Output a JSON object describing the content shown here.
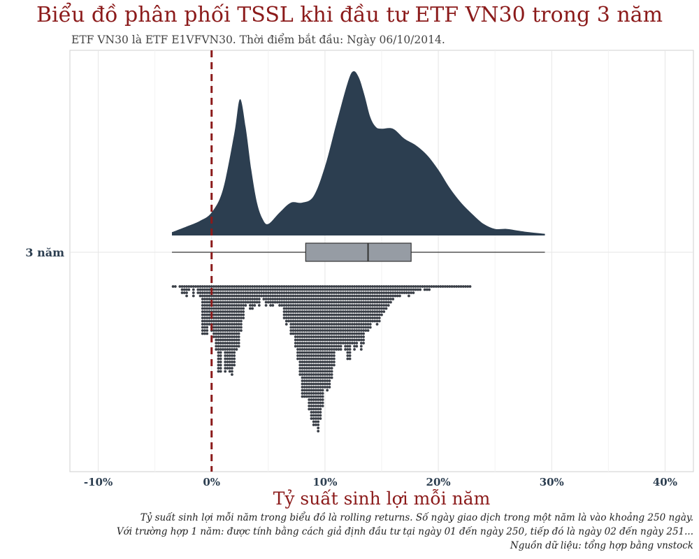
{
  "title": "Biểu đồ phân phối TSSL khi đầu tư ETF VN30 trong 3 năm",
  "subtitle": "ETF VN30 là ETF E1VFVN30.  Thời điểm bắt đầu: Ngày 06/10/2014.",
  "captions": [
    "Tỷ suất sinh lợi mỗi năm trong biểu đồ là rolling returns. Số ngày giao dịch trong một năm là vào khoảng 250 ngày.",
    "Với trường hợp 1 năm: được tính bằng cách giả định đầu tư tại ngày 01 đến ngày 250, tiếp đó là ngày 02 đến ngày 251...",
    "Nguồn dữ liệu: tổng hợp bằng vnstock"
  ],
  "colors": {
    "title": "#8b1a1a",
    "density_fill": "#2c3e50",
    "box_fill": "#969ca4",
    "dots": "#3a3f47",
    "reference_line": "#8b1a1a",
    "axis_text": "#2c3e50"
  },
  "chart_data": {
    "type": "raincloud",
    "category": "3 năm",
    "xlabel": "Tỷ suất sinh lợi mỗi năm",
    "ylabel": "",
    "xlim": [
      -0.125,
      0.425
    ],
    "x_ticks": [
      {
        "value": -0.1,
        "label": "-10%"
      },
      {
        "value": 0.0,
        "label": "0%"
      },
      {
        "value": 0.1,
        "label": "10%"
      },
      {
        "value": 0.2,
        "label": "20%"
      },
      {
        "value": 0.3,
        "label": "30%"
      },
      {
        "value": 0.4,
        "label": "40%"
      }
    ],
    "reference_line": {
      "value": 0.0,
      "style": "dashed"
    },
    "grid": true,
    "box": {
      "min": -0.035,
      "q1": 0.083,
      "median": 0.138,
      "q3": 0.176,
      "max": 0.294
    },
    "density": {
      "x": [
        -0.035,
        -0.02,
        -0.01,
        0.0,
        0.01,
        0.02,
        0.025,
        0.03,
        0.035,
        0.04,
        0.045,
        0.05,
        0.06,
        0.07,
        0.08,
        0.09,
        0.1,
        0.11,
        0.12,
        0.125,
        0.13,
        0.135,
        0.14,
        0.145,
        0.15,
        0.16,
        0.17,
        0.18,
        0.19,
        0.2,
        0.21,
        0.22,
        0.23,
        0.24,
        0.25,
        0.26,
        0.27,
        0.28,
        0.294
      ],
      "density": [
        0.02,
        0.06,
        0.09,
        0.14,
        0.28,
        0.62,
        0.83,
        0.66,
        0.4,
        0.2,
        0.1,
        0.07,
        0.14,
        0.2,
        0.2,
        0.24,
        0.42,
        0.68,
        0.93,
        1.0,
        0.96,
        0.85,
        0.72,
        0.66,
        0.65,
        0.65,
        0.59,
        0.55,
        0.49,
        0.4,
        0.29,
        0.2,
        0.13,
        0.07,
        0.04,
        0.04,
        0.03,
        0.02,
        0.01
      ]
    },
    "dot_histogram": {
      "bin_width": 0.002,
      "start": -0.035,
      "counts": [
        1,
        1,
        0,
        1,
        3,
        3,
        4,
        2,
        1,
        4,
        1,
        3,
        4,
        16,
        16,
        16,
        13,
        15,
        17,
        21,
        28,
        28,
        21,
        28,
        27,
        28,
        29,
        26,
        21,
        20,
        15,
        11,
        7,
        6,
        8,
        8,
        7,
        6,
        7,
        4,
        5,
        7,
        6,
        7,
        7,
        6,
        6,
        7,
        7,
        11,
        13,
        12,
        16,
        16,
        20,
        24,
        29,
        36,
        36,
        36,
        40,
        43,
        45,
        45,
        47,
        43,
        39,
        33,
        34,
        33,
        30,
        26,
        21,
        21,
        21,
        19,
        21,
        24,
        24,
        19,
        21,
        20,
        18,
        21,
        19,
        15,
        15,
        14,
        12,
        12,
        13,
        12,
        10,
        9,
        8,
        7,
        6,
        5,
        4,
        4,
        4,
        3,
        3,
        3,
        4,
        3,
        3,
        2,
        2,
        2,
        1,
        2,
        2,
        2,
        1,
        1,
        1,
        1,
        1,
        1,
        1,
        1,
        1,
        1,
        1,
        1,
        1,
        1,
        1,
        1,
        1,
        1
      ]
    }
  }
}
